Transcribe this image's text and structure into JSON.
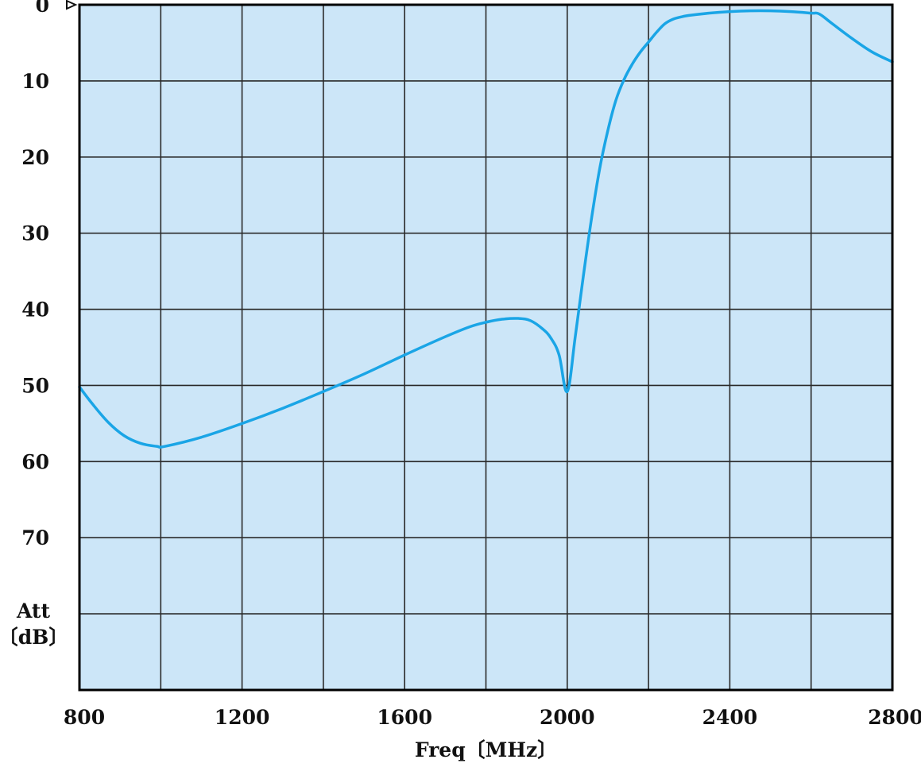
{
  "chart_data": {
    "type": "line",
    "title": "",
    "xlabel": "Freq〔MHz〕",
    "ylabel_line1": "Att",
    "ylabel_line2": "〔dB〕",
    "xlim": [
      800,
      2800
    ],
    "ylim": [
      0,
      90
    ],
    "y_inverted": true,
    "x_ticks": [
      800,
      1200,
      1600,
      2000,
      2400,
      2800
    ],
    "x_grid_step": 200,
    "y_ticks": [
      0,
      10,
      20,
      30,
      40,
      50,
      60,
      70
    ],
    "y_grid": [
      10,
      20,
      30,
      40,
      50,
      60,
      70,
      80
    ],
    "grid": true,
    "reference_level": 0,
    "colors": {
      "background": "#cce6f8",
      "grid": "#2a2a2a",
      "line": "#1aa5e6",
      "reference": "#000000"
    },
    "series": [
      {
        "x": [
          800,
          830,
          870,
          910,
          950,
          990,
          1010,
          1100,
          1200,
          1300,
          1400,
          1500,
          1600,
          1700,
          1760,
          1800,
          1840,
          1880,
          1910,
          1940,
          1960,
          1980,
          2000,
          2020,
          2040,
          2060,
          2080,
          2100,
          2120,
          2140,
          2160,
          2180,
          2200,
          2220,
          2240,
          2260,
          2280,
          2300,
          2350,
          2400,
          2450,
          2500,
          2550,
          2600,
          2620,
          2650,
          2700,
          2750,
          2800
        ],
        "y": [
          50.2,
          52.3,
          54.8,
          56.6,
          57.6,
          58.0,
          58.0,
          56.8,
          55.0,
          53.0,
          50.8,
          48.5,
          46.0,
          43.6,
          42.3,
          41.7,
          41.3,
          41.2,
          41.5,
          42.6,
          43.8,
          46.0,
          50.8,
          43.5,
          35.5,
          28.0,
          21.5,
          16.5,
          12.5,
          9.8,
          7.8,
          6.2,
          4.9,
          3.6,
          2.5,
          1.9,
          1.6,
          1.4,
          1.1,
          0.9,
          0.8,
          0.8,
          0.9,
          1.1,
          1.2,
          2.4,
          4.4,
          6.2,
          7.5
        ]
      }
    ]
  }
}
